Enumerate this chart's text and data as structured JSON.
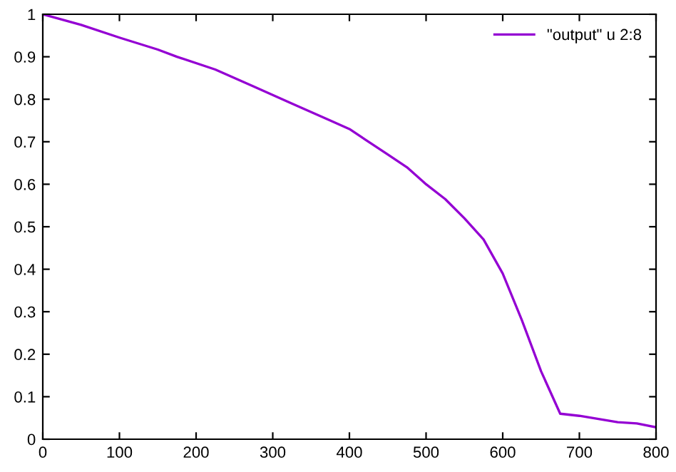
{
  "chart_data": {
    "type": "line",
    "xlim": [
      0,
      800
    ],
    "ylim": [
      0,
      1
    ],
    "xticks": [
      0,
      100,
      200,
      300,
      400,
      500,
      600,
      700,
      800
    ],
    "yticks": [
      0,
      0.1,
      0.2,
      0.3,
      0.4,
      0.5,
      0.6,
      0.7,
      0.8,
      0.9,
      1
    ],
    "grid": false,
    "legend": "top right",
    "marker": "none",
    "line_style": "solid",
    "series": [
      {
        "name": "\"output\" u 2:8",
        "color": "#9400d3",
        "x": [
          0,
          50,
          100,
          150,
          175,
          225,
          275,
          325,
          375,
          400,
          425,
          450,
          475,
          500,
          525,
          550,
          575,
          600,
          625,
          650,
          675,
          700,
          750,
          775,
          800
        ],
        "values": [
          1.0,
          0.975,
          0.945,
          0.917,
          0.9,
          0.87,
          0.83,
          0.79,
          0.75,
          0.73,
          0.7,
          0.67,
          0.64,
          0.6,
          0.565,
          0.52,
          0.47,
          0.39,
          0.28,
          0.16,
          0.06,
          0.055,
          0.04,
          0.037,
          0.028
        ]
      }
    ]
  }
}
